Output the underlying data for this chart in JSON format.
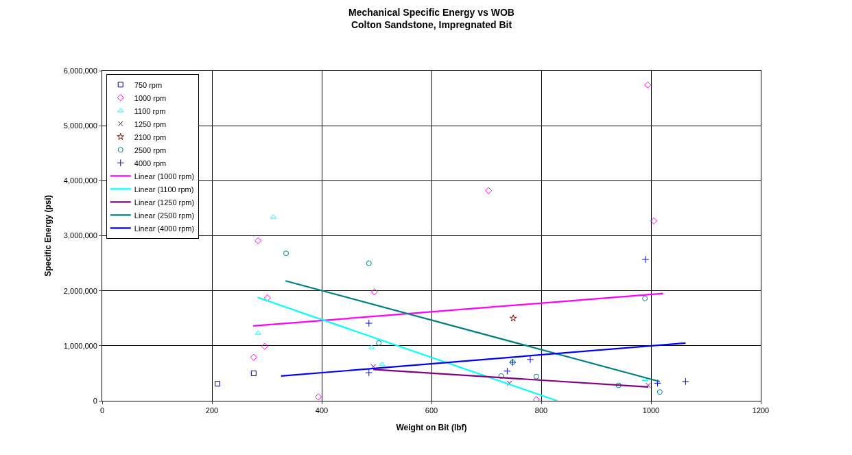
{
  "chart_data": {
    "type": "scatter",
    "title": "Mechanical Specific Energy vs WOB\nColton Sandstone, Impregnated Bit",
    "xlabel": "Weight on Bit (lbf)",
    "ylabel": "Specific Energy (psi)",
    "xlim": [
      0,
      1200
    ],
    "xticks": [
      0,
      200,
      400,
      600,
      800,
      1000,
      1200
    ],
    "ylim": [
      0,
      6000000
    ],
    "yticks": [
      {
        "value": 0,
        "label": "0"
      },
      {
        "value": 1000000,
        "label": "1,000,000"
      },
      {
        "value": 2000000,
        "label": "2,000,000"
      },
      {
        "value": 3000000,
        "label": "3,000,000"
      },
      {
        "value": 4000000,
        "label": "4,000,000"
      },
      {
        "value": 5000000,
        "label": "5,000,000"
      },
      {
        "value": 6000000,
        "label": "6,000,000"
      }
    ],
    "grid": true,
    "legend": "top left",
    "series": [
      {
        "name": "750 rpm",
        "color": "#000080",
        "marker": "square",
        "x": [
          210,
          276
        ],
        "values": [
          310000,
          500000
        ]
      },
      {
        "name": "1000 rpm",
        "color": "#ff00ff",
        "marker": "diamond",
        "x": [
          284,
          301,
          296,
          276,
          394,
          496,
          994,
          704,
          1005,
          791
        ],
        "values": [
          2910000,
          1870000,
          990000,
          790000,
          70000,
          1980000,
          5740000,
          3820000,
          3270000,
          20000
        ]
      },
      {
        "name": "1100 rpm",
        "color": "#00ffff",
        "marker": "triangle",
        "x": [
          312,
          284,
          491,
          510,
          989
        ],
        "values": [
          3340000,
          1230000,
          970000,
          660000,
          390000
        ]
      },
      {
        "name": "1250 rpm",
        "color": "#800080",
        "marker": "x",
        "x": [
          494,
          742,
          995
        ],
        "values": [
          620000,
          320000,
          280000
        ]
      },
      {
        "name": "2100 rpm",
        "color": "#800000",
        "marker": "star",
        "x": [
          749
        ],
        "values": [
          1500000
        ]
      },
      {
        "name": "2500 rpm",
        "color": "#008080",
        "marker": "circle",
        "x": [
          335,
          486,
          504,
          727,
          748,
          791,
          941,
          989,
          1016
        ],
        "values": [
          2680000,
          2500000,
          1050000,
          450000,
          700000,
          440000,
          280000,
          1860000,
          160000
        ]
      },
      {
        "name": "4000 rpm",
        "color": "#0000ff",
        "marker": "cross",
        "x": [
          486,
          486,
          748,
          738,
          780,
          990,
          1012,
          1063
        ],
        "values": [
          1410000,
          510000,
          700000,
          540000,
          750000,
          2570000,
          320000,
          350000
        ]
      },
      {
        "name": "Linear (1000 rpm)",
        "type": "line",
        "color": "#ff00ff",
        "marker": "none",
        "x": [
          275,
          1022
        ],
        "values": [
          1360000,
          1950000
        ]
      },
      {
        "name": "Linear (1100 rpm)",
        "type": "line",
        "color": "#00ffff",
        "marker": "none",
        "x": [
          283,
          829
        ],
        "values": [
          1880000,
          0
        ]
      },
      {
        "name": "Linear (1250 rpm)",
        "type": "line",
        "color": "#800080",
        "marker": "none",
        "x": [
          494,
          995
        ],
        "values": [
          570000,
          250000
        ]
      },
      {
        "name": "Linear (2500 rpm)",
        "type": "line",
        "color": "#008080",
        "marker": "none",
        "x": [
          334,
          1016
        ],
        "values": [
          2180000,
          350000
        ]
      },
      {
        "name": "Linear (4000 rpm)",
        "type": "line",
        "color": "#0000ff",
        "marker": "none",
        "x": [
          326,
          1063
        ],
        "values": [
          450000,
          1050000
        ]
      }
    ]
  }
}
